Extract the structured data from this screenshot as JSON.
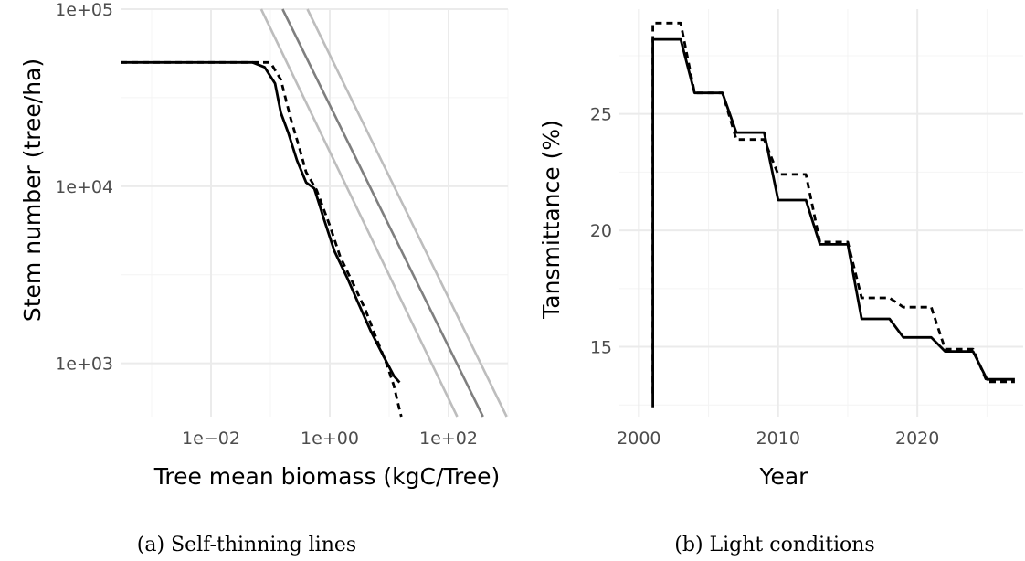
{
  "chart_data": [
    {
      "type": "line",
      "caption": "(a) Self-thinning lines",
      "xlabel": "Tree mean biomass (kgC/Tree)",
      "ylabel": "Stem number (tree/ha)",
      "xscale": "log10",
      "yscale": "log10",
      "xlim": [
        0.0003,
        1000
      ],
      "ylim": [
        500,
        100000
      ],
      "x_ticks": [
        0.01,
        1,
        100
      ],
      "x_tick_labels": [
        "1e−02",
        "1e+00",
        "1e+02"
      ],
      "y_ticks": [
        1000,
        10000,
        100000
      ],
      "y_tick_labels": [
        "1e+03",
        "1e+04",
        "1e+05"
      ],
      "grid": true,
      "series": [
        {
          "style": "solid",
          "color": "#000000",
          "x": [
            0.0003,
            0.01,
            0.05,
            0.08,
            0.12,
            0.15,
            0.2,
            0.28,
            0.4,
            0.55,
            0.8,
            1.2,
            2.0,
            3.0,
            5.0,
            8.0,
            12.0,
            15.0
          ],
          "y": [
            50000,
            50000,
            50000,
            47000,
            38000,
            26000,
            20000,
            14000,
            10500,
            9700,
            6500,
            4300,
            3000,
            2200,
            1500,
            1100,
            850,
            780
          ]
        },
        {
          "style": "dashed",
          "color": "#000000",
          "x": [
            0.0003,
            0.01,
            0.05,
            0.1,
            0.15,
            0.22,
            0.3,
            0.4,
            0.6,
            1.0,
            1.5,
            2.5,
            4.0,
            6.0,
            9.0,
            12.0,
            14.0,
            16.0
          ],
          "y": [
            50000,
            50000,
            50000,
            50000,
            40000,
            24000,
            17000,
            12000,
            9500,
            6000,
            4000,
            2800,
            2000,
            1400,
            1000,
            750,
            600,
            500
          ]
        },
        {
          "style": "solid",
          "color": "#bdbdbd",
          "x": [
            0.07,
            140
          ],
          "y": [
            100000,
            500
          ]
        },
        {
          "style": "solid",
          "color": "#7f7f7f",
          "x": [
            0.16,
            380
          ],
          "y": [
            100000,
            500
          ]
        },
        {
          "style": "solid",
          "color": "#bdbdbd",
          "x": [
            0.42,
            950
          ],
          "y": [
            100000,
            500
          ]
        }
      ]
    },
    {
      "type": "line",
      "caption": "(b) Light conditions",
      "xlabel": "Year",
      "ylabel": "Tansmittance (%)",
      "xlim": [
        1998.6,
        2027.6
      ],
      "ylim": [
        12.0,
        29.5
      ],
      "x_ticks": [
        2000,
        2010,
        2020
      ],
      "y_ticks": [
        15,
        20,
        25
      ],
      "grid": true,
      "series": [
        {
          "style": "solid",
          "color": "#000000",
          "x": [
            2001,
            2001,
            2003,
            2004,
            2006,
            2007,
            2009,
            2010,
            2012,
            2013,
            2015,
            2016,
            2018,
            2019,
            2021,
            2022,
            2024,
            2025,
            2027
          ],
          "y": [
            12.4,
            28.2,
            28.2,
            25.9,
            25.9,
            24.2,
            24.2,
            21.3,
            21.3,
            19.4,
            19.4,
            16.2,
            16.2,
            15.4,
            15.4,
            14.8,
            14.8,
            13.6,
            13.6
          ]
        },
        {
          "style": "dashed",
          "color": "#000000",
          "x": [
            2001,
            2001,
            2003,
            2004,
            2006,
            2007,
            2009,
            2010,
            2012,
            2013,
            2015,
            2016,
            2018,
            2019,
            2021,
            2022,
            2024,
            2025,
            2027
          ],
          "y": [
            13.0,
            28.9,
            28.9,
            25.9,
            25.9,
            23.9,
            23.9,
            22.4,
            22.4,
            19.5,
            19.5,
            17.1,
            17.1,
            16.7,
            16.7,
            14.9,
            14.9,
            13.5,
            13.5
          ]
        }
      ]
    }
  ]
}
